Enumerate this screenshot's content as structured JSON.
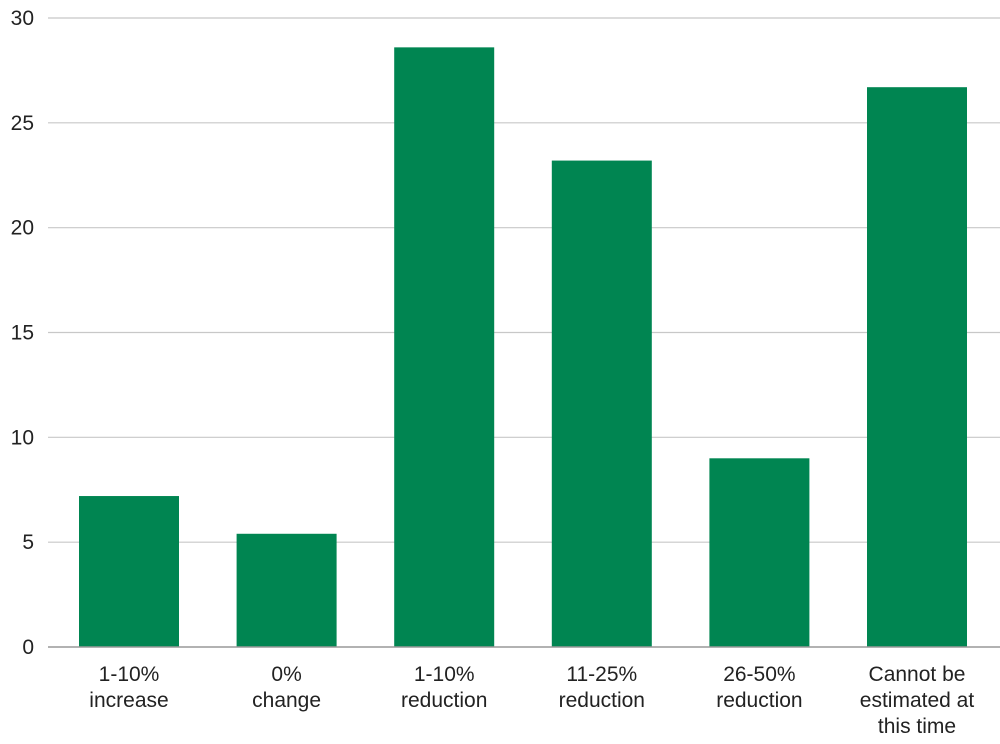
{
  "chart_data": {
    "type": "bar",
    "title": "",
    "xlabel": "",
    "ylabel": "",
    "categories": [
      [
        "1-10%",
        "increase"
      ],
      [
        "0%",
        "change"
      ],
      [
        "1-10%",
        "reduction"
      ],
      [
        "11-25%",
        "reduction"
      ],
      [
        "26-50%",
        "reduction"
      ],
      [
        "Cannot be",
        "estimated at",
        "this time"
      ]
    ],
    "values": [
      7.2,
      5.4,
      28.6,
      23.2,
      9.0,
      26.7
    ],
    "ylim": [
      0,
      30
    ],
    "yticks": [
      0,
      5,
      10,
      15,
      20,
      25,
      30
    ],
    "grid": true,
    "legend": "none",
    "colors": {
      "bar": "#008551",
      "grid": "#c8c8c8",
      "axis": "#999999"
    }
  }
}
